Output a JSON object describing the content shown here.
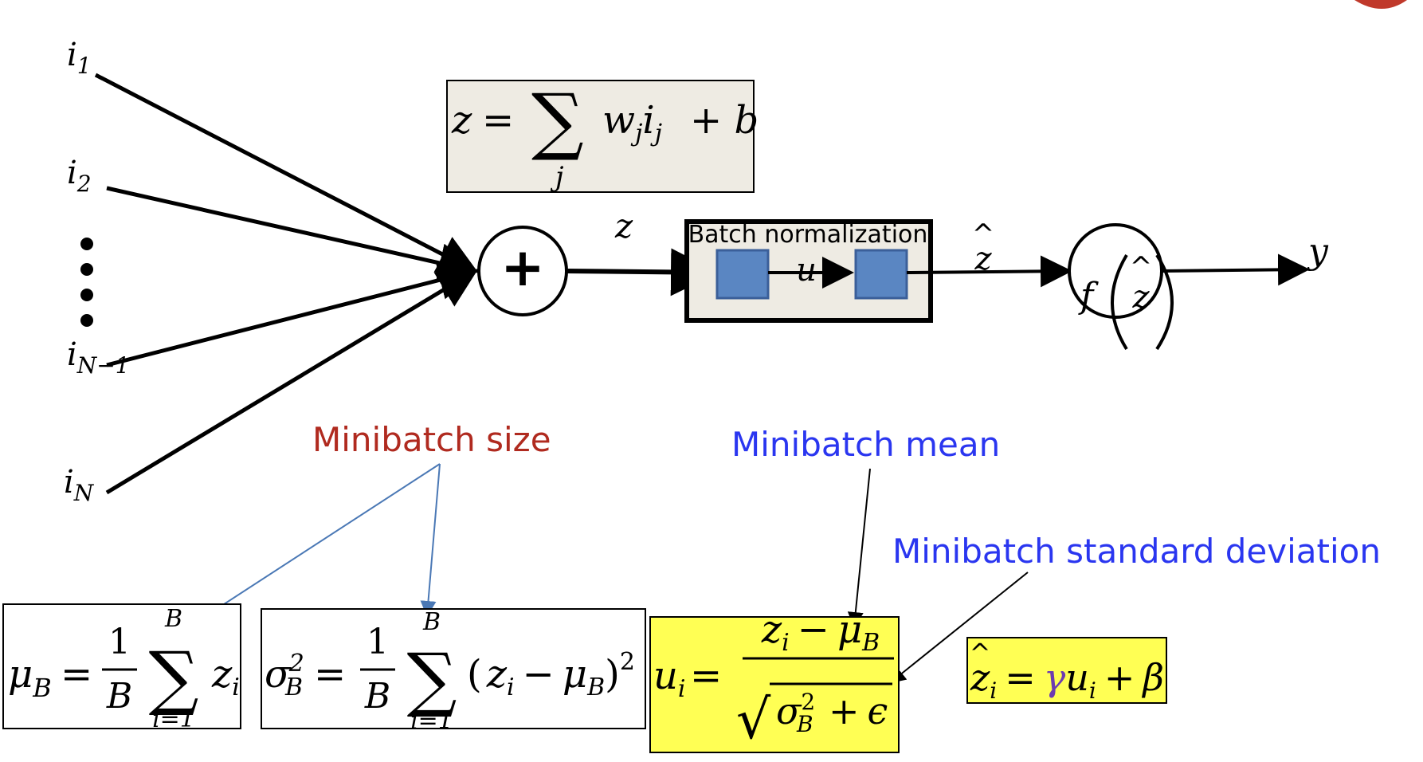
{
  "colors": {
    "stroke": "#000000",
    "formula_box_fill": "#eeebe3",
    "bn_box_fill": "#eeebe3",
    "bn_block_fill": "#5a86c2",
    "bn_block_stroke": "#3b5f99",
    "highlight_fill": "#ffff54",
    "size_label": "#b02a1f",
    "mean_label": "#2a36f0",
    "stdev_label": "#2a36f0",
    "size_arrow": "#4a78b5",
    "gamma": "#6d3bb0",
    "corner_accent": "#c0392b"
  },
  "inputs": {
    "i1": {
      "base": "i",
      "sub": "1"
    },
    "i2": {
      "base": "i",
      "sub": "2"
    },
    "iN1": {
      "base": "i",
      "sub": "N−1"
    },
    "iN": {
      "base": "i",
      "sub": "N"
    }
  },
  "sum_node": {
    "symbol": "+"
  },
  "z_formula": {
    "lhs": "z",
    "eq": "=",
    "sigma": "∑",
    "index": "j",
    "w": "w",
    "w_sub": "j",
    "i": "i",
    "i_sub": "j",
    "plus_b": "+ b"
  },
  "z_label": "z",
  "bn": {
    "title": "Batch normalization",
    "u_label": "u"
  },
  "zhat_label": {
    "hat": "^",
    "base": "z"
  },
  "activation": {
    "f": "f",
    "hat": "^",
    "z": "z"
  },
  "y_label": "y",
  "labels": {
    "minibatch_size": "Minibatch size",
    "minibatch_mean": "Minibatch mean",
    "minibatch_stdev": "Minibatch standard deviation"
  },
  "mu_formula": {
    "mu": "μ",
    "mu_sub": "B",
    "eq": "=",
    "num": "1",
    "den": "B",
    "sigma": "∑",
    "top": "B",
    "bottom": "i=1",
    "z": "z",
    "z_sub": "i"
  },
  "var_formula": {
    "sigma_sym": "σ",
    "sup": "2",
    "sub": "B",
    "eq": "=",
    "num": "1",
    "den": "B",
    "sum": "∑",
    "top": "B",
    "bottom": "i=1",
    "open": "(",
    "z": "z",
    "z_sub": "i",
    "minus": "−",
    "mu": "μ",
    "mu_sub": "B",
    "close": ")",
    "outer_sup": "2"
  },
  "u_formula": {
    "u": "u",
    "u_sub": "i",
    "eq": "=",
    "num_z": "z",
    "num_z_sub": "i",
    "num_minus": "−",
    "num_mu": "μ",
    "num_mu_sub": "B",
    "radical": "√",
    "den_sigma": "σ",
    "den_sup": "2",
    "den_sub": "B",
    "den_plus": "+",
    "den_eps": "ϵ"
  },
  "zhat_formula": {
    "hat": "^",
    "z": "z",
    "z_sub": "i",
    "eq": "=",
    "gamma": "γ",
    "u": "u",
    "u_sub": "i",
    "plus": "+",
    "beta": "β"
  }
}
